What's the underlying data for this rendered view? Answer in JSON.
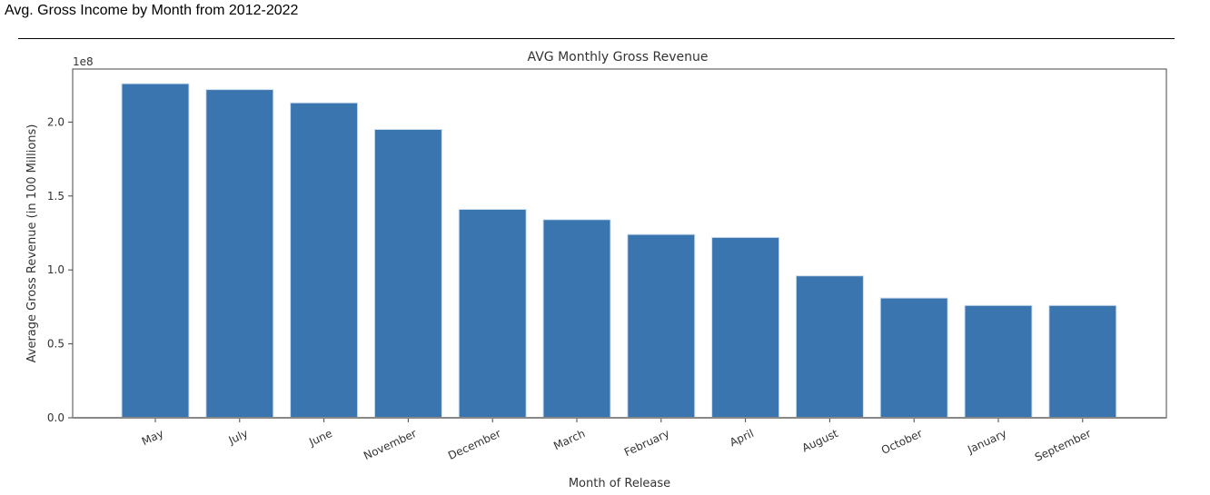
{
  "page": {
    "heading": "Avg. Gross Income by Month from 2012-2022"
  },
  "chart_data": {
    "type": "bar",
    "title": "AVG Monthly Gross Revenue",
    "xlabel": "Month of Release",
    "ylabel": "Average Gross Revenue (in 100 Millions)",
    "y_offset_label": "1e8",
    "categories": [
      "May",
      "July",
      "June",
      "November",
      "December",
      "March",
      "February",
      "April",
      "August",
      "October",
      "January",
      "September"
    ],
    "values": [
      2.26,
      2.22,
      2.13,
      1.95,
      1.41,
      1.34,
      1.24,
      1.22,
      0.96,
      0.81,
      0.76,
      0.76
    ],
    "yticks": [
      "0.0",
      "0.5",
      "1.0",
      "1.5",
      "2.0"
    ],
    "ylim": [
      0,
      2.38
    ],
    "grid": false,
    "colors": {
      "bar": "#3b75af",
      "axes": "#444444"
    }
  }
}
